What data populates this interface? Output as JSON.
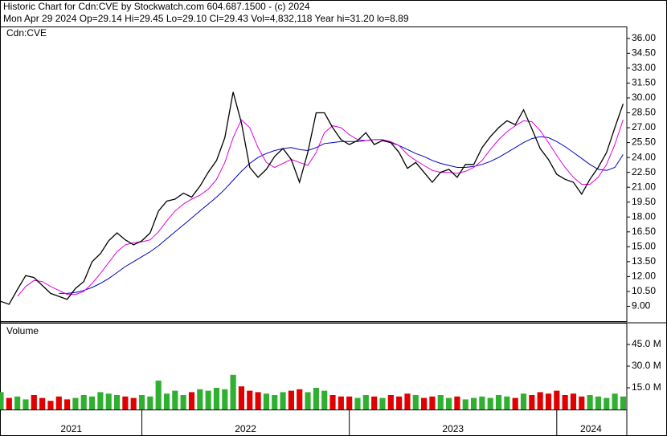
{
  "chart_data": {
    "type": "line",
    "title": "Historic Chart for Cdn:CVE by Stockwatch.com 604.687.1500 - (c) 2024",
    "subtitle": "Mon Apr 29 2024  Op=29.14  Hi=29.45  Lo=29.10  Cl=29.43  Vol=4,832,118  Year hi=31.20  lo=8.89",
    "x": [
      2021.32,
      2021.36,
      2021.4,
      2021.44,
      2021.48,
      2021.52,
      2021.56,
      2021.6,
      2021.64,
      2021.68,
      2021.72,
      2021.76,
      2021.8,
      2021.84,
      2021.88,
      2021.92,
      2021.96,
      2022.0,
      2022.04,
      2022.08,
      2022.12,
      2022.16,
      2022.2,
      2022.24,
      2022.28,
      2022.32,
      2022.36,
      2022.4,
      2022.44,
      2022.48,
      2022.52,
      2022.56,
      2022.6,
      2022.64,
      2022.68,
      2022.72,
      2022.76,
      2022.8,
      2022.84,
      2022.88,
      2022.92,
      2022.96,
      2023.0,
      2023.04,
      2023.08,
      2023.12,
      2023.16,
      2023.2,
      2023.24,
      2023.28,
      2023.32,
      2023.36,
      2023.4,
      2023.44,
      2023.48,
      2023.52,
      2023.56,
      2023.6,
      2023.64,
      2023.68,
      2023.72,
      2023.76,
      2023.8,
      2023.84,
      2023.88,
      2023.92,
      2023.96,
      2024.0,
      2024.04,
      2024.08,
      2024.12,
      2024.16,
      2024.2,
      2024.24,
      2024.28,
      2024.32
    ],
    "series": [
      {
        "name": "Cdn:CVE",
        "color": "#000000",
        "values": [
          9.5,
          9.2,
          10.7,
          12.1,
          11.9,
          11.1,
          10.3,
          10.0,
          9.7,
          10.8,
          11.5,
          13.5,
          14.3,
          15.6,
          16.4,
          15.7,
          15.2,
          15.6,
          16.4,
          18.6,
          19.6,
          19.8,
          20.4,
          20.0,
          21.1,
          22.5,
          23.7,
          26.0,
          30.6,
          27.5,
          23.0,
          22.0,
          22.8,
          24.1,
          24.9,
          23.8,
          21.5,
          24.5,
          28.5,
          28.5,
          27.0,
          25.8,
          25.3,
          25.7,
          26.5,
          25.3,
          25.7,
          25.5,
          24.5,
          22.9,
          23.5,
          22.5,
          21.5,
          22.5,
          22.8,
          22.0,
          23.3,
          23.3,
          25.0,
          26.1,
          27.0,
          27.7,
          27.3,
          28.8,
          26.9,
          24.9,
          23.8,
          22.3,
          21.8,
          21.5,
          20.3,
          21.8,
          23.0,
          24.5,
          27.0,
          29.4
        ]
      },
      {
        "color": "#e000e0",
        "values": [
          null,
          null,
          10.0,
          11.0,
          11.6,
          11.5,
          11.0,
          10.6,
          10.2,
          10.2,
          10.5,
          11.3,
          12.3,
          13.4,
          14.5,
          15.2,
          15.4,
          15.5,
          15.7,
          16.5,
          17.6,
          18.6,
          19.3,
          19.8,
          20.2,
          20.8,
          21.8,
          23.5,
          26.0,
          27.8,
          27.0,
          25.0,
          23.5,
          23.0,
          23.4,
          23.8,
          23.5,
          23.2,
          24.5,
          26.5,
          27.2,
          27.0,
          26.3,
          25.8,
          25.7,
          25.8,
          25.8,
          25.6,
          25.2,
          24.3,
          23.7,
          23.2,
          22.7,
          22.5,
          22.5,
          22.4,
          22.6,
          23.0,
          23.7,
          24.8,
          25.8,
          26.6,
          27.2,
          27.7,
          27.6,
          26.7,
          25.5,
          24.2,
          23.0,
          22.0,
          21.3,
          21.3,
          22.0,
          23.3,
          25.3,
          27.8
        ]
      },
      {
        "color": "#0000c0",
        "values": [
          null,
          null,
          null,
          null,
          null,
          null,
          null,
          10.3,
          10.3,
          10.4,
          10.6,
          10.9,
          11.3,
          11.8,
          12.4,
          13.0,
          13.5,
          14.0,
          14.5,
          15.1,
          15.8,
          16.5,
          17.2,
          17.9,
          18.6,
          19.3,
          20.0,
          20.8,
          21.7,
          22.6,
          23.4,
          24.0,
          24.4,
          24.7,
          24.9,
          25.0,
          24.8,
          24.7,
          25.0,
          25.4,
          25.5,
          25.6,
          25.6,
          25.6,
          25.7,
          25.8,
          25.8,
          25.5,
          25.2,
          24.8,
          24.4,
          24.1,
          23.7,
          23.4,
          23.2,
          23.0,
          23.0,
          23.1,
          23.3,
          23.6,
          24.0,
          24.5,
          25.0,
          25.5,
          25.9,
          26.1,
          26.0,
          25.6,
          25.1,
          24.5,
          23.9,
          23.3,
          22.8,
          22.7,
          23.0,
          24.3
        ]
      },
      {
        "name": "Volume",
        "type": "bar",
        "axis": "y2",
        "up_color": "#30b030",
        "down_color": "#e00000",
        "values": [
          12,
          8,
          9,
          7,
          10,
          8,
          6,
          9,
          7,
          8,
          10,
          9,
          12,
          11,
          10,
          9,
          8,
          10,
          9,
          20,
          11,
          13,
          10,
          12,
          14,
          13,
          15,
          14,
          24,
          16,
          13,
          12,
          11,
          10,
          12,
          13,
          14,
          12,
          15,
          13,
          10,
          9,
          9,
          8,
          10,
          9,
          8,
          10,
          9,
          11,
          10,
          8,
          9,
          10,
          8,
          9,
          7,
          8,
          9,
          8,
          10,
          9,
          8,
          11,
          10,
          12,
          11,
          13,
          10,
          11,
          9,
          10,
          9,
          8,
          11,
          9
        ]
      }
    ],
    "xlim": [
      2021.32,
      2024.33
    ],
    "xticks": [
      {
        "value": 2021,
        "label": "2021"
      },
      {
        "value": 2022,
        "label": "2022"
      },
      {
        "value": 2023,
        "label": "2023"
      },
      {
        "value": 2024,
        "label": "2024"
      }
    ],
    "ylim": [
      7.5,
      37.2
    ],
    "yticks": [
      {
        "value": 9,
        "label": "9.00"
      },
      {
        "value": 10.5,
        "label": "10.50"
      },
      {
        "value": 12,
        "label": "12.00"
      },
      {
        "value": 13.5,
        "label": "13.50"
      },
      {
        "value": 15,
        "label": "15.00"
      },
      {
        "value": 16.5,
        "label": "16.50"
      },
      {
        "value": 18,
        "label": "18.00"
      },
      {
        "value": 19.5,
        "label": "19.50"
      },
      {
        "value": 21,
        "label": "21.00"
      },
      {
        "value": 22.5,
        "label": "22.50"
      },
      {
        "value": 24,
        "label": "24.00"
      },
      {
        "value": 25.5,
        "label": "25.50"
      },
      {
        "value": 27,
        "label": "27.00"
      },
      {
        "value": 28.5,
        "label": "28.50"
      },
      {
        "value": 30,
        "label": "30.00"
      },
      {
        "value": 31.5,
        "label": "31.50"
      },
      {
        "value": 33,
        "label": "33.00"
      },
      {
        "value": 34.5,
        "label": "34.50"
      },
      {
        "value": 36,
        "label": "36.00"
      }
    ],
    "y2lim": [
      0,
      60
    ],
    "y2ticks": [
      {
        "value": 15,
        "label": "15.0 M"
      },
      {
        "value": 30,
        "label": "30.0 M"
      },
      {
        "value": 45,
        "label": "45.0 M"
      }
    ]
  }
}
